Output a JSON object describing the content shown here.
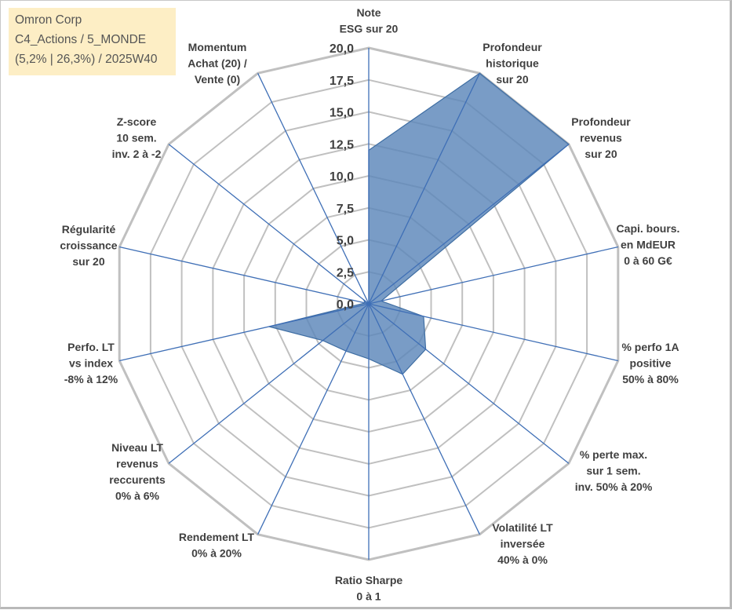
{
  "info": {
    "company": "Omron Corp",
    "portfolio": "C4_Actions / 5_MONDE",
    "stats": "(5,2% | 26,3%) / 2025W40"
  },
  "colors": {
    "fill": "#5b86b9",
    "stroke": "#3f6ea3",
    "grid": "#c0c0c0",
    "spoke": "#3f6fb6",
    "info_bg": "#fdeec5",
    "text": "#404040"
  },
  "chart_data": {
    "type": "radar",
    "r_min": 0,
    "r_max": 20,
    "tick_labels": [
      "0,0",
      "2,5",
      "5,0",
      "7,5",
      "10,0",
      "12,5",
      "15,0",
      "17,5",
      "20,0"
    ],
    "axes": [
      {
        "label": [
          "Note",
          "ESG sur 20"
        ],
        "value": 12
      },
      {
        "label": [
          "Profondeur",
          "historique",
          "sur 20"
        ],
        "value": 20
      },
      {
        "label": [
          "Profondeur",
          "revenus",
          "sur 20"
        ],
        "value": 20
      },
      {
        "label": [
          "Capi. bours.",
          "en MdEUR",
          "0 à 60 G€"
        ],
        "value": 1.0
      },
      {
        "label": [
          "% perfo 1A",
          "positive",
          "50% à 80%"
        ],
        "value": 4.4
      },
      {
        "label": [
          "% perte max.",
          "sur 1 sem.",
          "inv. 50% à 20%"
        ],
        "value": 5.7
      },
      {
        "label": [
          "Volatilité LT",
          "inversée",
          "40% à 0%"
        ],
        "value": 6.1
      },
      {
        "label": [
          "Ratio Sharpe",
          "0 à 1"
        ],
        "value": 4.3
      },
      {
        "label": [
          "Rendement LT",
          "0% à 20%"
        ],
        "value": 4.1
      },
      {
        "label": [
          "Niveau LT",
          "revenus",
          "reccurents",
          "0% à 6%"
        ],
        "value": 4.6
      },
      {
        "label": [
          "Perfo. LT",
          "vs index",
          "-8% à 12%"
        ],
        "value": 8.0
      },
      {
        "label": [
          "Régularité",
          "croissance",
          "sur 20"
        ],
        "value": 0.3
      },
      {
        "label": [
          "Z-score",
          "10 sem.",
          "inv. 2 à -2"
        ],
        "value": 0.5
      },
      {
        "label": [
          "Momentum",
          "Achat (20) /",
          "Vente (0)"
        ],
        "value": 0
      }
    ]
  }
}
